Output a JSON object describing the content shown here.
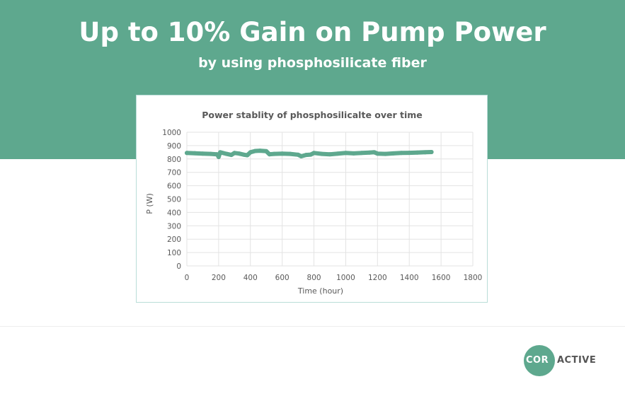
{
  "header": {
    "title": "Up to 10% Gain on Pump Power",
    "subtitle": "by using phosphosilicate fiber"
  },
  "logo": {
    "part1": "COR",
    "part2": "ACTIVE",
    "brand_color": "#5ea88e"
  },
  "colors": {
    "banner": "#5ea88e",
    "series": "#5ea88e",
    "grid": "#e3e3e3",
    "axis_text": "#595959"
  },
  "chart_data": {
    "type": "line",
    "title": "Power stablity of phosphosilicalte over time",
    "xlabel": "Time (hour)",
    "ylabel": "P (W)",
    "xlim": [
      0,
      1800
    ],
    "ylim": [
      0,
      1000
    ],
    "x_ticks": [
      0,
      200,
      400,
      600,
      800,
      1000,
      1200,
      1400,
      1600,
      1800
    ],
    "y_ticks": [
      0,
      100,
      200,
      300,
      400,
      500,
      600,
      700,
      800,
      900,
      1000
    ],
    "grid": true,
    "legend": "none",
    "series": [
      {
        "x": [
          0,
          50,
          100,
          150,
          190,
          200,
          210,
          250,
          280,
          300,
          330,
          360,
          380,
          400,
          430,
          460,
          500,
          520,
          550,
          600,
          650,
          700,
          720,
          750,
          780,
          800,
          850,
          900,
          950,
          1000,
          1050,
          1100,
          1150,
          1180,
          1200,
          1250,
          1300,
          1350,
          1400,
          1450,
          1500,
          1540
        ],
        "y": [
          845,
          843,
          840,
          838,
          835,
          815,
          850,
          838,
          830,
          845,
          840,
          832,
          828,
          850,
          860,
          862,
          858,
          835,
          838,
          840,
          838,
          832,
          820,
          830,
          833,
          845,
          838,
          835,
          840,
          845,
          842,
          845,
          848,
          850,
          840,
          838,
          842,
          845,
          846,
          848,
          850,
          852
        ]
      }
    ]
  }
}
